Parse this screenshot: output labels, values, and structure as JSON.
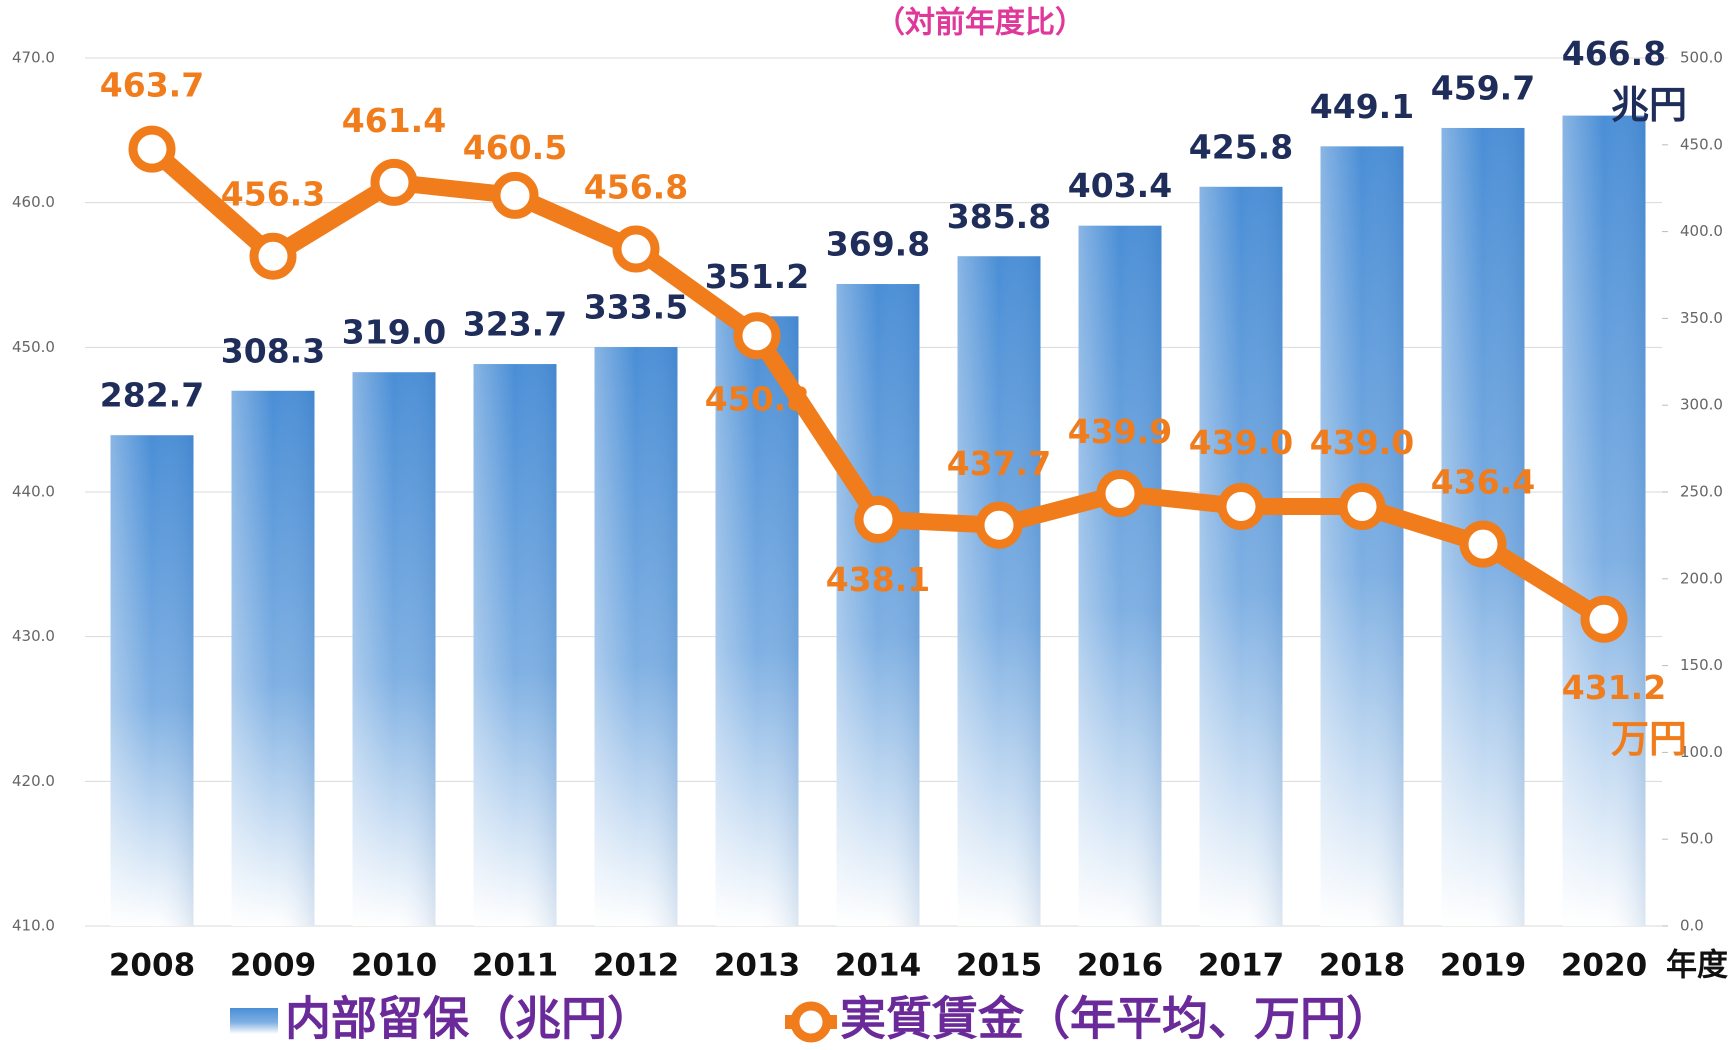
{
  "chart_data": {
    "type": "bar_line",
    "subtitle": "（対前年度比）",
    "categories": [
      "2008",
      "2009",
      "2010",
      "2011",
      "2012",
      "2013",
      "2014",
      "2015",
      "2016",
      "2017",
      "2018",
      "2019",
      "2020"
    ],
    "x_unit": "年度",
    "series": [
      {
        "name": "内部留保（兆円）",
        "type": "bar",
        "axis": "y2",
        "color": "#5b9bd5",
        "label_color": "#1f2d5a",
        "unit": "兆円",
        "values": [
          282.7,
          308.3,
          319.0,
          323.7,
          333.5,
          351.2,
          369.8,
          385.8,
          403.4,
          425.8,
          449.1,
          459.7,
          466.8
        ],
        "value_labels": [
          "282.7",
          "308.3",
          "319.0",
          "323.7",
          "333.5",
          "351.2",
          "369.8",
          "385.8",
          "403.4",
          "425.8",
          "449.1",
          "459.7",
          "466.8"
        ]
      },
      {
        "name": "実質賃金（年平均、万円）",
        "type": "line",
        "axis": "y",
        "color": "#f07c1c",
        "label_color": "#f07c1c",
        "unit": "万円",
        "values": [
          463.7,
          456.3,
          461.4,
          460.5,
          456.8,
          450.8,
          438.1,
          437.7,
          439.9,
          439.0,
          439.0,
          436.4,
          431.2
        ],
        "value_labels": [
          "463.7",
          "456.3",
          "461.4",
          "460.5",
          "456.8",
          "450.8",
          "438.1",
          "437.7",
          "439.9",
          "439.0",
          "439.0",
          "436.4",
          "431.2"
        ]
      }
    ],
    "ylim": [
      410,
      470
    ],
    "yticks": [
      {
        "value": 410,
        "label": "410.0"
      },
      {
        "value": 420,
        "label": "420.0"
      },
      {
        "value": 430,
        "label": "430.0"
      },
      {
        "value": 440,
        "label": "440.0"
      },
      {
        "value": 450,
        "label": "450.0"
      },
      {
        "value": 460,
        "label": "460.0"
      },
      {
        "value": 470,
        "label": "470.0"
      }
    ],
    "y2lim": [
      0,
      500
    ],
    "y2ticks": [
      {
        "value": 0,
        "label": "0.0"
      },
      {
        "value": 50,
        "label": "50.0"
      },
      {
        "value": 100,
        "label": "100.0"
      },
      {
        "value": 150,
        "label": "150.0"
      },
      {
        "value": 200,
        "label": "200.0"
      },
      {
        "value": 250,
        "label": "250.0"
      },
      {
        "value": 300,
        "label": "300.0"
      },
      {
        "value": 350,
        "label": "350.0"
      },
      {
        "value": 400,
        "label": "400.0"
      },
      {
        "value": 450,
        "label": "450.0"
      },
      {
        "value": 500,
        "label": "500.0"
      }
    ],
    "grid": true
  }
}
